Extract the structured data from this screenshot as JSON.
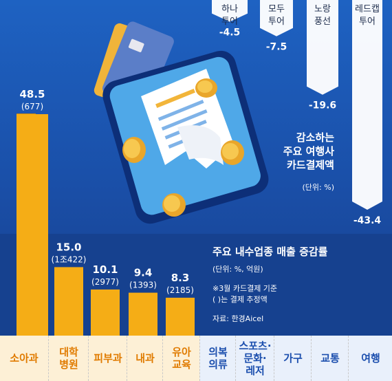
{
  "chart_data": [
    {
      "type": "bar",
      "categories": [
        "소아과",
        "대학\n병원",
        "피부과",
        "내과",
        "유아\n교육"
      ],
      "values": [
        48.5,
        15.0,
        10.1,
        9.4,
        8.3
      ],
      "value_labels": [
        "48.5",
        "15.0",
        "10.1",
        "9.4",
        "8.3"
      ],
      "sub_labels": [
        "(677)",
        "(1조422)",
        "(2977)",
        "(1393)",
        "(2185)"
      ],
      "title": "주요 내수업종 매출 증감률",
      "unit": "(단위: %, 억원)",
      "note": "※3월 카드결제 기준\n( )는 결제 추정액",
      "source": "자료: 한경Aicel",
      "color": "#f5ad16"
    },
    {
      "type": "bar",
      "categories": [
        "하나\n투어",
        "모두\n투어",
        "노랑\n풍선",
        "레드캡\n투어"
      ],
      "values": [
        -4.5,
        -7.5,
        -19.6,
        -43.4
      ],
      "value_labels": [
        "-4.5",
        "-7.5",
        "-19.6",
        "-43.4"
      ],
      "title": "감소하는\n주요 여행사\n카드결제액",
      "unit": "(단위: %)",
      "color": "#ffffff"
    }
  ],
  "axis_categories": {
    "orange": [
      "소아과",
      "대학\n병원",
      "피부과",
      "내과",
      "유아\n교육"
    ],
    "blue": [
      "의복\n의류",
      "스포츠·\n문화·\n레저",
      "가구",
      "교통",
      "여행"
    ]
  },
  "colors": {
    "background": "#1a4fa8",
    "bar_orange": "#f5ad16",
    "bar_white": "#ffffff",
    "cat_orange_bg": "#fdf0d6",
    "cat_orange_text": "#e07b00",
    "cat_blue_bg": "#e9f0fb",
    "cat_blue_text": "#1c4fae"
  },
  "illustration": [
    "credit-card-icon",
    "smartphone-receipt-icon",
    "gold-coin-icon"
  ]
}
